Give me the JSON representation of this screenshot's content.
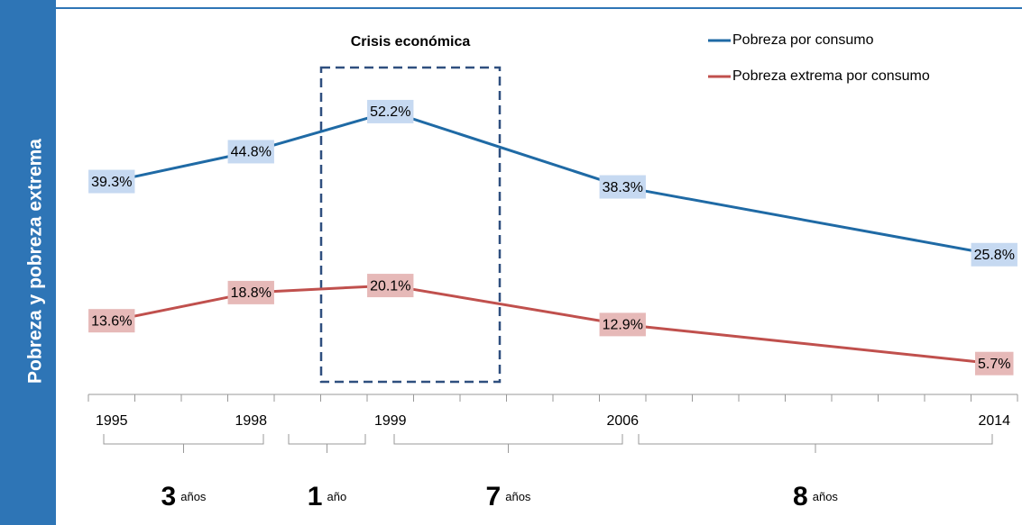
{
  "chart_data": {
    "type": "line",
    "y_label": "Pobreza y pobreza extrema",
    "annotation": "Crisis económica",
    "categories": [
      "1995",
      null,
      null,
      "1998",
      null,
      null,
      "1999",
      null,
      null,
      null,
      null,
      "2006",
      null,
      null,
      null,
      null,
      null,
      null,
      null,
      "2014"
    ],
    "series": [
      {
        "name": "Pobreza por consumo",
        "color": "#1f6aa5",
        "label_color": "#c6d9f1",
        "values": [
          39.3,
          null,
          null,
          44.8,
          null,
          null,
          52.2,
          null,
          null,
          null,
          null,
          38.3,
          null,
          null,
          null,
          null,
          null,
          null,
          null,
          25.8
        ],
        "value_labels": [
          "39.3%",
          null,
          null,
          "44.8%",
          null,
          null,
          "52.2%",
          null,
          null,
          null,
          null,
          "38.3%",
          null,
          null,
          null,
          null,
          null,
          null,
          null,
          "25.8%"
        ]
      },
      {
        "name": "Pobreza extrema por consumo",
        "color": "#c0504d",
        "label_color": "#e6b9b8",
        "values": [
          13.6,
          null,
          null,
          18.8,
          null,
          null,
          20.1,
          null,
          null,
          null,
          null,
          12.9,
          null,
          null,
          null,
          null,
          null,
          null,
          null,
          5.7
        ],
        "value_labels": [
          "13.6%",
          null,
          null,
          "18.8%",
          null,
          null,
          "20.1%",
          null,
          null,
          null,
          null,
          "12.9%",
          null,
          null,
          null,
          null,
          null,
          null,
          null,
          "5.7%"
        ]
      }
    ],
    "ylim": [
      0,
      60
    ],
    "periods": [
      {
        "value": 3,
        "unit": "años"
      },
      {
        "value": 1,
        "unit": "año"
      },
      {
        "value": 7,
        "unit": "años"
      },
      {
        "value": 8,
        "unit": "años"
      }
    ]
  }
}
